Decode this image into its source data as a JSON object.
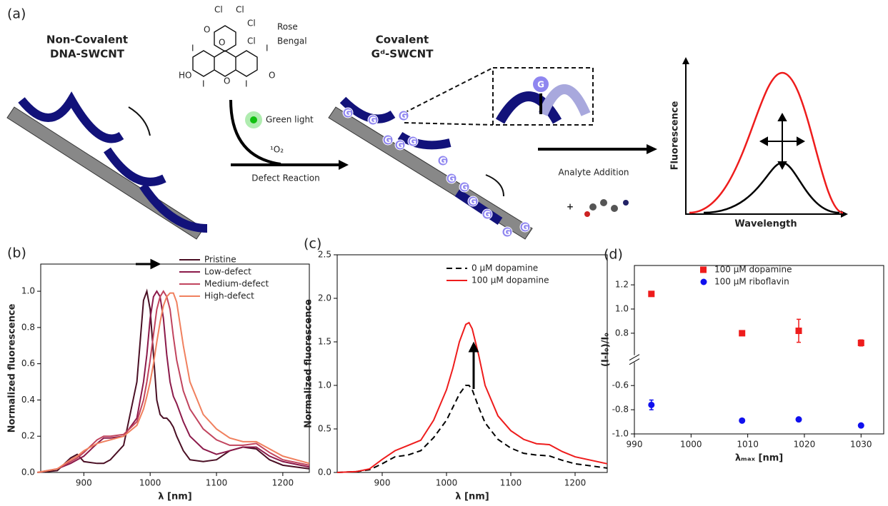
{
  "panel_a": {
    "label": "(a)",
    "left_title": [
      "Non-Covalent",
      "DNA-SWCNT"
    ],
    "reagent": [
      "Rose",
      "Bengal"
    ],
    "light": "Green light",
    "oxygen": "¹O₂",
    "step1": "Defect Reaction",
    "right_title": [
      "Covalent",
      "Gᵈ-SWCNT"
    ],
    "nucleotide": "G",
    "step2": "Analyte Addition",
    "plus": "+",
    "atoms": [
      "Cl",
      "Cl",
      "Cl",
      "Cl",
      "O",
      "O",
      "I",
      "I",
      "I",
      "I",
      "HO",
      "O",
      "O"
    ],
    "plot_y": "Fluorescence",
    "plot_x": "Wavelength"
  },
  "chart_data": [
    {
      "type": "line",
      "label": "(b)",
      "xlabel": "λ [nm]",
      "ylabel": "Normalized fluorescence",
      "x": [
        830,
        860,
        880,
        890,
        900,
        920,
        930,
        940,
        960,
        980,
        990,
        995,
        1000,
        1005,
        1010,
        1015,
        1020,
        1025,
        1030,
        1035,
        1040,
        1050,
        1060,
        1080,
        1100,
        1120,
        1140,
        1160,
        1180,
        1200,
        1240
      ],
      "series": [
        {
          "name": "Pristine",
          "color": "#4a0f24",
          "values": [
            0,
            0.01,
            0.08,
            0.1,
            0.06,
            0.05,
            0.05,
            0.07,
            0.15,
            0.5,
            0.95,
            1.0,
            0.9,
            0.65,
            0.4,
            0.32,
            0.3,
            0.3,
            0.28,
            0.25,
            0.2,
            0.12,
            0.07,
            0.06,
            0.07,
            0.12,
            0.14,
            0.13,
            0.07,
            0.04,
            0.02
          ]
        },
        {
          "name": "Low-defect",
          "color": "#8b1a4a",
          "values": [
            0,
            0.02,
            0.05,
            0.07,
            0.09,
            0.16,
            0.19,
            0.19,
            0.2,
            0.3,
            0.5,
            0.65,
            0.85,
            0.97,
            1.0,
            0.97,
            0.85,
            0.65,
            0.5,
            0.42,
            0.38,
            0.28,
            0.2,
            0.13,
            0.1,
            0.12,
            0.14,
            0.14,
            0.09,
            0.06,
            0.03
          ]
        },
        {
          "name": "Medium-defect",
          "color": "#c1445e",
          "values": [
            0,
            0.02,
            0.06,
            0.08,
            0.11,
            0.18,
            0.2,
            0.2,
            0.21,
            0.28,
            0.4,
            0.5,
            0.62,
            0.76,
            0.9,
            0.97,
            1.0,
            0.97,
            0.9,
            0.75,
            0.62,
            0.45,
            0.35,
            0.24,
            0.18,
            0.15,
            0.15,
            0.16,
            0.11,
            0.07,
            0.04
          ]
        },
        {
          "name": "High-defect",
          "color": "#f0805e",
          "values": [
            0,
            0.02,
            0.07,
            0.09,
            0.12,
            0.16,
            0.17,
            0.18,
            0.2,
            0.26,
            0.35,
            0.42,
            0.5,
            0.6,
            0.72,
            0.83,
            0.92,
            0.97,
            0.99,
            0.99,
            0.94,
            0.7,
            0.5,
            0.32,
            0.24,
            0.19,
            0.17,
            0.17,
            0.13,
            0.09,
            0.05
          ]
        }
      ],
      "xlim": [
        835,
        1240
      ],
      "xticks": [
        900,
        1000,
        1100,
        1200
      ],
      "ylim": [
        0,
        1.15
      ],
      "yticks": [
        {
          "value": 0,
          "label": "0.0"
        },
        0.2,
        0.4,
        0.6,
        0.8,
        {
          "value": 1,
          "label": "1.0"
        }
      ]
    },
    {
      "type": "line",
      "label": "(c)",
      "xlabel": "λ [nm]",
      "ylabel": "Normalized fluorescence",
      "x": [
        830,
        860,
        880,
        900,
        920,
        940,
        960,
        980,
        1000,
        1010,
        1020,
        1030,
        1035,
        1040,
        1050,
        1060,
        1080,
        1100,
        1120,
        1140,
        1160,
        1180,
        1200,
        1250
      ],
      "series": [
        {
          "name": "0 µM dopamine",
          "color": "#000000",
          "dash": true,
          "values": [
            0,
            0.01,
            0.03,
            0.1,
            0.18,
            0.2,
            0.25,
            0.4,
            0.6,
            0.75,
            0.9,
            1.0,
            1.0,
            0.95,
            0.75,
            0.57,
            0.38,
            0.28,
            0.22,
            0.2,
            0.19,
            0.14,
            0.1,
            0.05
          ]
        },
        {
          "name": "100 µM dopamine",
          "color": "#ee1c1c",
          "values": [
            0,
            0.01,
            0.04,
            0.15,
            0.25,
            0.31,
            0.37,
            0.6,
            0.95,
            1.2,
            1.5,
            1.7,
            1.72,
            1.65,
            1.35,
            1.0,
            0.65,
            0.48,
            0.38,
            0.33,
            0.32,
            0.24,
            0.18,
            0.1
          ]
        }
      ],
      "xlim": [
        830,
        1250
      ],
      "xticks": [
        900,
        1000,
        1100,
        1200
      ],
      "ylim": [
        0,
        2.5
      ],
      "yticks": [
        {
          "value": 0,
          "label": "0.0"
        },
        0.5,
        {
          "value": 1,
          "label": "1.0"
        },
        1.5,
        {
          "value": 2,
          "label": "2.0"
        },
        2.5
      ]
    },
    {
      "type": "scatter",
      "label": "(d)",
      "xlabel": "λₘₐₓ [nm]",
      "ylabel": "(I-I₀)/I₀",
      "x": [
        993,
        1009,
        1019,
        1030
      ],
      "series": [
        {
          "name": "100 µM dopamine",
          "color": "#ee1c1c",
          "marker": "square",
          "values": [
            1.125,
            0.8,
            0.82,
            0.72
          ],
          "errors": [
            0.02,
            0.01,
            0.095,
            0.025
          ]
        },
        {
          "name": "100 µM riboflavin",
          "color": "#1010ee",
          "marker": "circle",
          "values": [
            -0.76,
            -0.89,
            -0.88,
            -0.93
          ],
          "errors": [
            0.04,
            0.015,
            0.01,
            0.015
          ]
        }
      ],
      "xlim": [
        990,
        1034
      ],
      "xticks": [
        990,
        1000,
        1010,
        1020,
        1030
      ],
      "ylim": [
        -1.0,
        1.36
      ],
      "ybreak": [
        -0.42,
        0.63
      ],
      "yticks": [
        {
          "value": -1,
          "label": "-1.0"
        },
        -0.8,
        -0.6,
        0.8,
        {
          "value": 1,
          "label": "1.0"
        },
        1.2
      ]
    }
  ]
}
